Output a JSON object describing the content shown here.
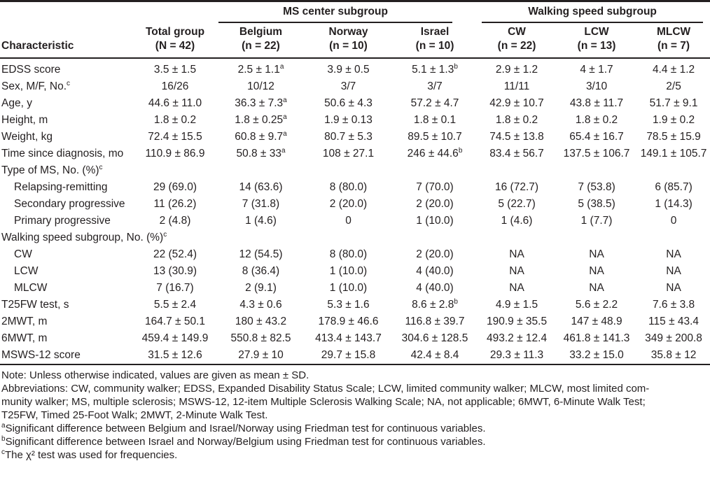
{
  "table": {
    "groups": [
      {
        "label": "MS center subgroup"
      },
      {
        "label": "Walking speed subgroup"
      }
    ],
    "columns": [
      {
        "label": "Characteristic",
        "sub": ""
      },
      {
        "label": "Total group",
        "sub": "(N = 42)"
      },
      {
        "label": "Belgium",
        "sub": "(n = 22)"
      },
      {
        "label": "Norway",
        "sub": "(n = 10)"
      },
      {
        "label": "Israel",
        "sub": "(n = 10)"
      },
      {
        "label": "CW",
        "sub": "(n = 22)"
      },
      {
        "label": "LCW",
        "sub": "(n = 13)"
      },
      {
        "label": "MLCW",
        "sub": "(n = 7)"
      }
    ],
    "rows": [
      {
        "label": "EDSS score",
        "sup": "",
        "indent": false,
        "values": [
          [
            "3.5 ± 1.5",
            ""
          ],
          [
            "2.5 ± 1.1",
            "a"
          ],
          [
            "3.9 ± 0.5",
            ""
          ],
          [
            "5.1 ± 1.3",
            "b"
          ],
          [
            "2.9 ± 1.2",
            ""
          ],
          [
            "4 ± 1.7",
            ""
          ],
          [
            "4.4 ± 1.2",
            ""
          ]
        ]
      },
      {
        "label": "Sex, M/F, No.",
        "sup": "c",
        "indent": false,
        "values": [
          [
            "16/26",
            ""
          ],
          [
            "10/12",
            ""
          ],
          [
            "3/7",
            ""
          ],
          [
            "3/7",
            ""
          ],
          [
            "11/11",
            ""
          ],
          [
            "3/10",
            ""
          ],
          [
            "2/5",
            ""
          ]
        ]
      },
      {
        "label": "Age, y",
        "sup": "",
        "indent": false,
        "values": [
          [
            "44.6 ± 11.0",
            ""
          ],
          [
            "36.3 ± 7.3",
            "a"
          ],
          [
            "50.6 ± 4.3",
            ""
          ],
          [
            "57.2 ± 4.7",
            ""
          ],
          [
            "42.9 ± 10.7",
            ""
          ],
          [
            "43.8 ± 11.7",
            ""
          ],
          [
            "51.7 ± 9.1",
            ""
          ]
        ]
      },
      {
        "label": "Height, m",
        "sup": "",
        "indent": false,
        "values": [
          [
            "1.8 ± 0.2",
            ""
          ],
          [
            "1.8 ± 0.25",
            "a"
          ],
          [
            "1.9 ± 0.13",
            ""
          ],
          [
            "1.8 ± 0.1",
            ""
          ],
          [
            "1.8 ± 0.2",
            ""
          ],
          [
            "1.8 ± 0.2",
            ""
          ],
          [
            "1.9 ± 0.2",
            ""
          ]
        ]
      },
      {
        "label": "Weight, kg",
        "sup": "",
        "indent": false,
        "values": [
          [
            "72.4 ± 15.5",
            ""
          ],
          [
            "60.8 ± 9.7",
            "a"
          ],
          [
            "80.7 ± 5.3",
            ""
          ],
          [
            "89.5 ± 10.7",
            ""
          ],
          [
            "74.5 ± 13.8",
            ""
          ],
          [
            "65.4 ± 16.7",
            ""
          ],
          [
            "78.5 ± 15.9",
            ""
          ]
        ]
      },
      {
        "label": "Time since diagnosis, mo",
        "sup": "",
        "indent": false,
        "values": [
          [
            "110.9 ± 86.9",
            ""
          ],
          [
            "50.8 ± 33",
            "a"
          ],
          [
            "108 ± 27.1",
            ""
          ],
          [
            "246 ± 44.6",
            "b"
          ],
          [
            "83.4 ± 56.7",
            ""
          ],
          [
            "137.5 ± 106.7",
            ""
          ],
          [
            "149.1 ± 105.7",
            ""
          ]
        ]
      },
      {
        "label": "Type of MS, No. (%)",
        "sup": "c",
        "indent": false,
        "values": []
      },
      {
        "label": "Relapsing-remitting",
        "sup": "",
        "indent": true,
        "values": [
          [
            "29 (69.0)",
            ""
          ],
          [
            "14 (63.6)",
            ""
          ],
          [
            "8 (80.0)",
            ""
          ],
          [
            "7 (70.0)",
            ""
          ],
          [
            "16 (72.7)",
            ""
          ],
          [
            "7 (53.8)",
            ""
          ],
          [
            "6 (85.7)",
            ""
          ]
        ]
      },
      {
        "label": "Secondary progressive",
        "sup": "",
        "indent": true,
        "values": [
          [
            "11 (26.2)",
            ""
          ],
          [
            "7 (31.8)",
            ""
          ],
          [
            "2 (20.0)",
            ""
          ],
          [
            "2 (20.0)",
            ""
          ],
          [
            "5 (22.7)",
            ""
          ],
          [
            "5 (38.5)",
            ""
          ],
          [
            "1 (14.3)",
            ""
          ]
        ]
      },
      {
        "label": "Primary progressive",
        "sup": "",
        "indent": true,
        "values": [
          [
            "2 (4.8)",
            ""
          ],
          [
            "1 (4.6)",
            ""
          ],
          [
            "0",
            ""
          ],
          [
            "1 (10.0)",
            ""
          ],
          [
            "1 (4.6)",
            ""
          ],
          [
            "1 (7.7)",
            ""
          ],
          [
            "0",
            ""
          ]
        ]
      },
      {
        "label": "Walking speed subgroup, No. (%)",
        "sup": "c",
        "indent": false,
        "values": []
      },
      {
        "label": "CW",
        "sup": "",
        "indent": true,
        "values": [
          [
            "22 (52.4)",
            ""
          ],
          [
            "12 (54.5)",
            ""
          ],
          [
            "8 (80.0)",
            ""
          ],
          [
            "2 (20.0)",
            ""
          ],
          [
            "NA",
            ""
          ],
          [
            "NA",
            ""
          ],
          [
            "NA",
            ""
          ]
        ]
      },
      {
        "label": "LCW",
        "sup": "",
        "indent": true,
        "values": [
          [
            "13 (30.9)",
            ""
          ],
          [
            "8 (36.4)",
            ""
          ],
          [
            "1 (10.0)",
            ""
          ],
          [
            "4 (40.0)",
            ""
          ],
          [
            "NA",
            ""
          ],
          [
            "NA",
            ""
          ],
          [
            "NA",
            ""
          ]
        ]
      },
      {
        "label": "MLCW",
        "sup": "",
        "indent": true,
        "values": [
          [
            "7 (16.7)",
            ""
          ],
          [
            "2 (9.1)",
            ""
          ],
          [
            "1 (10.0)",
            ""
          ],
          [
            "4 (40.0)",
            ""
          ],
          [
            "NA",
            ""
          ],
          [
            "NA",
            ""
          ],
          [
            "NA",
            ""
          ]
        ]
      },
      {
        "label": "T25FW test, s",
        "sup": "",
        "indent": false,
        "values": [
          [
            "5.5 ± 2.4",
            ""
          ],
          [
            "4.3 ± 0.6",
            ""
          ],
          [
            "5.3 ± 1.6",
            ""
          ],
          [
            "8.6 ± 2.8",
            "b"
          ],
          [
            "4.9 ± 1.5",
            ""
          ],
          [
            "5.6 ± 2.2",
            ""
          ],
          [
            "7.6 ± 3.8",
            ""
          ]
        ]
      },
      {
        "label": "2MWT, m",
        "sup": "",
        "indent": false,
        "values": [
          [
            "164.7 ± 50.1",
            ""
          ],
          [
            "180 ± 43.2",
            ""
          ],
          [
            "178.9 ± 46.6",
            ""
          ],
          [
            "116.8 ± 39.7",
            ""
          ],
          [
            "190.9 ± 35.5",
            ""
          ],
          [
            "147 ± 48.9",
            ""
          ],
          [
            "115 ± 43.4",
            ""
          ]
        ]
      },
      {
        "label": "6MWT, m",
        "sup": "",
        "indent": false,
        "values": [
          [
            "459.4 ± 149.9",
            ""
          ],
          [
            "550.8 ± 82.5",
            ""
          ],
          [
            "413.4 ± 143.7",
            ""
          ],
          [
            "304.6 ± 128.5",
            ""
          ],
          [
            "493.2 ± 12.4",
            ""
          ],
          [
            "461.8 ± 141.3",
            ""
          ],
          [
            "349 ± 200.8",
            ""
          ]
        ]
      },
      {
        "label": "MSWS-12 score",
        "sup": "",
        "indent": false,
        "values": [
          [
            "31.5 ± 12.6",
            ""
          ],
          [
            "27.9 ± 10",
            ""
          ],
          [
            "29.7 ± 15.8",
            ""
          ],
          [
            "42.4 ± 8.4",
            ""
          ],
          [
            "29.3 ± 11.3",
            ""
          ],
          [
            "33.2 ± 15.0",
            ""
          ],
          [
            "35.8 ± 12",
            ""
          ]
        ]
      }
    ]
  },
  "notes": {
    "note": "Note: Unless otherwise indicated, values are given as mean ± SD.",
    "abbrev": [
      "Abbreviations: CW, community walker; EDSS, Expanded Disability Status Scale; LCW, limited community walker; MLCW, most limited com-",
      "munity walker; MS, multiple sclerosis; MSWS-12, 12-item Multiple Sclerosis Walking Scale; NA, not applicable; 6MWT, 6-Minute Walk Test;",
      "T25FW, Timed 25-Foot Walk; 2MWT, 2-Minute Walk Test."
    ],
    "footnotes": [
      {
        "sup": "a",
        "text": "Significant difference between Belgium and Israel/Norway using Friedman test for continuous variables."
      },
      {
        "sup": "b",
        "text": "Significant difference between Israel and Norway/Belgium using Friedman test for continuous variables."
      },
      {
        "sup": "c",
        "text": "The χ² test was used for frequencies."
      }
    ]
  }
}
